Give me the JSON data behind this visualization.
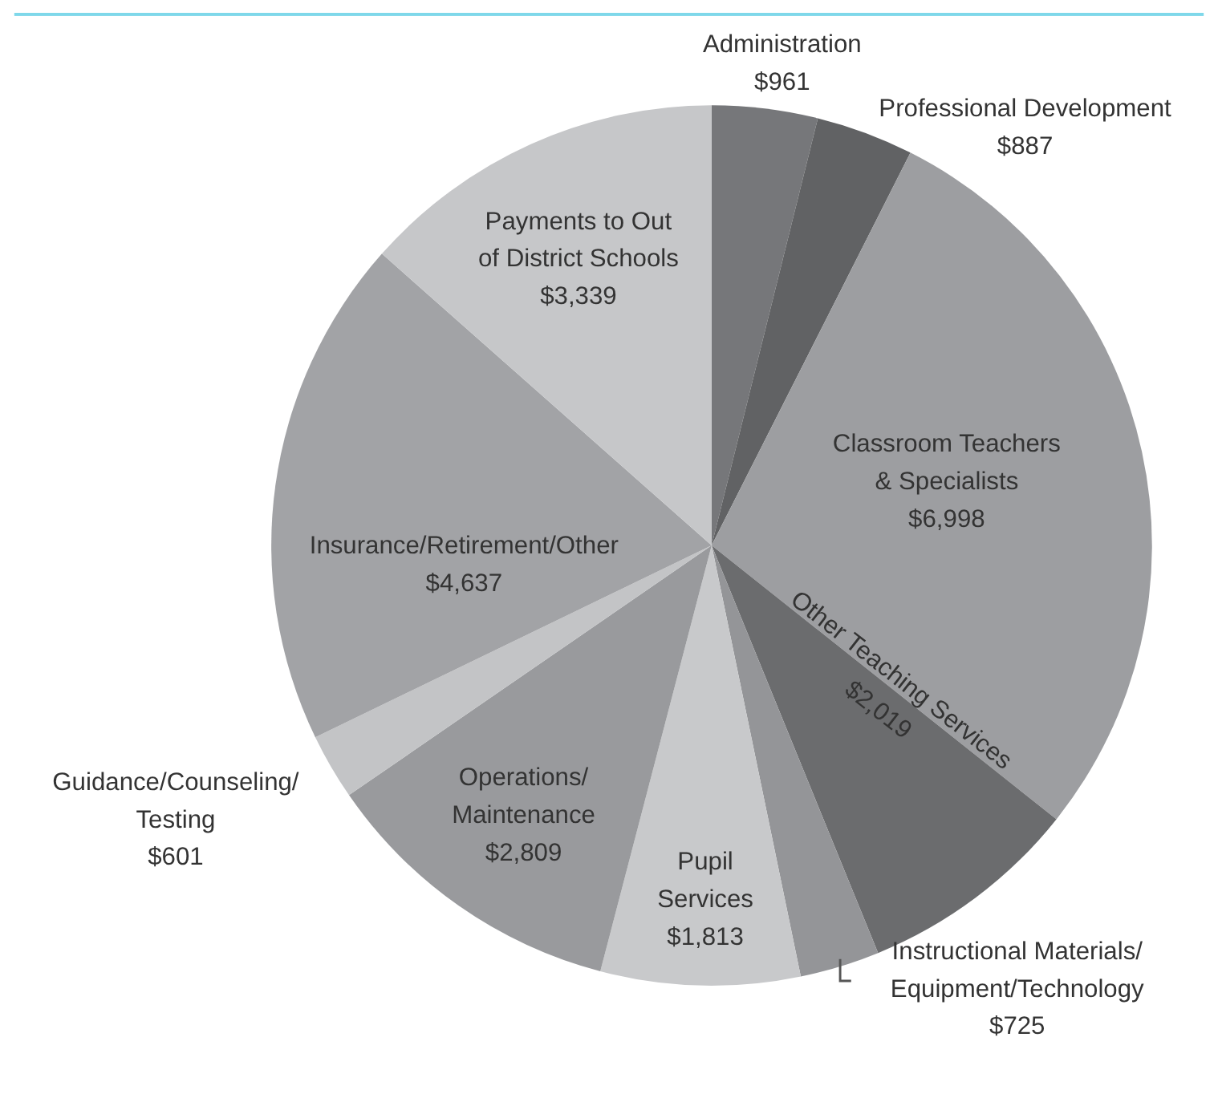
{
  "chart_data": {
    "type": "pie",
    "categories": [
      "Administration",
      "Professional Development",
      "Classroom Teachers\n& Specialists",
      "Other Teaching Services",
      "Instructional Materials/\nEquipment/Technology",
      "Pupil\nServices",
      "Operations/\nMaintenance",
      "Guidance/Counseling/\nTesting",
      "Insurance/Retirement/Other",
      "Payments to Out\nof District Schools"
    ],
    "values": [
      961,
      887,
      6998,
      2019,
      725,
      1813,
      2809,
      601,
      4637,
      3339
    ],
    "value_labels": [
      "$961",
      "$887",
      "$6,998",
      "$2,019",
      "$725",
      "$1,813",
      "$2,809",
      "$601",
      "$4,637",
      "$3,339"
    ],
    "colors": [
      "#76777a",
      "#616264",
      "#9d9ea1",
      "#6b6c6e",
      "#949598",
      "#c8c9cb",
      "#999a9d",
      "#c3c4c6",
      "#a2a3a6",
      "#c6c7c9"
    ]
  }
}
